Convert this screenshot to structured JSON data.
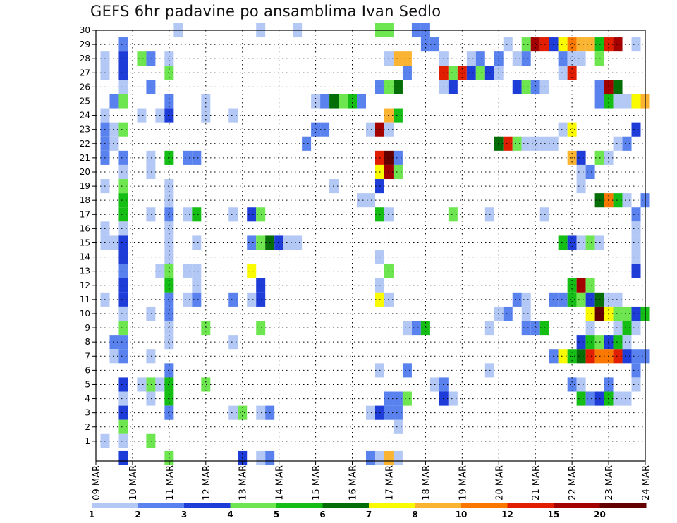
{
  "chart_data": {
    "type": "heatmap",
    "title": "GEFS 6hr padavine po ansamblima Ivan Sedlo",
    "xlabel": "",
    "ylabel": "",
    "ylim": [
      0,
      30
    ],
    "y_ticks": [
      1,
      2,
      3,
      4,
      5,
      6,
      7,
      8,
      9,
      10,
      11,
      12,
      13,
      14,
      15,
      16,
      17,
      18,
      19,
      20,
      21,
      22,
      23,
      24,
      25,
      26,
      27,
      28,
      29,
      30
    ],
    "x_ticks": [
      "09 MAR",
      "10 MAR",
      "11 MAR",
      "12 MAR",
      "13 MAR",
      "14 MAR",
      "15 MAR",
      "16 MAR",
      "17 MAR",
      "18 MAR",
      "19 MAR",
      "20 MAR",
      "21 MAR",
      "22 MAR",
      "23 MAR",
      "24 MAR"
    ],
    "time_steps": 60,
    "colorbar": {
      "levels": [
        "1",
        "2",
        "3",
        "4",
        "5",
        "6",
        "7",
        "8",
        "10",
        "12",
        "15",
        "20"
      ],
      "colors": [
        "#b4c8f5",
        "#5a82ee",
        "#1e3cd7",
        "#6ee650",
        "#14be14",
        "#066e06",
        "#fafa00",
        "#fab432",
        "#fa7800",
        "#e11e00",
        "#a50000",
        "#640000"
      ]
    },
    "cells": [
      [
        30,
        9,
        1
      ],
      [
        30,
        18,
        1
      ],
      [
        30,
        22,
        1
      ],
      [
        30,
        31,
        4
      ],
      [
        30,
        32,
        4
      ],
      [
        30,
        35,
        2
      ],
      [
        30,
        36,
        2
      ],
      [
        29,
        3,
        2
      ],
      [
        29,
        36,
        2
      ],
      [
        29,
        37,
        2
      ],
      [
        29,
        45,
        1
      ],
      [
        29,
        47,
        4
      ],
      [
        29,
        48,
        11
      ],
      [
        29,
        49,
        10
      ],
      [
        29,
        50,
        3
      ],
      [
        29,
        51,
        7
      ],
      [
        29,
        52,
        9
      ],
      [
        29,
        53,
        8
      ],
      [
        29,
        54,
        8
      ],
      [
        29,
        55,
        5
      ],
      [
        29,
        56,
        10
      ],
      [
        29,
        57,
        11
      ],
      [
        29,
        59,
        1
      ],
      [
        28,
        1,
        1
      ],
      [
        28,
        3,
        3
      ],
      [
        28,
        5,
        4
      ],
      [
        28,
        6,
        2
      ],
      [
        28,
        8,
        1
      ],
      [
        28,
        32,
        1
      ],
      [
        28,
        33,
        8
      ],
      [
        28,
        34,
        8
      ],
      [
        28,
        38,
        1
      ],
      [
        28,
        41,
        1
      ],
      [
        28,
        42,
        2
      ],
      [
        28,
        44,
        2
      ],
      [
        28,
        46,
        1
      ],
      [
        28,
        47,
        2
      ],
      [
        28,
        51,
        2
      ],
      [
        28,
        52,
        1
      ],
      [
        28,
        53,
        1
      ],
      [
        28,
        55,
        4
      ],
      [
        27,
        1,
        1
      ],
      [
        27,
        3,
        3
      ],
      [
        27,
        8,
        4
      ],
      [
        27,
        34,
        2
      ],
      [
        27,
        38,
        10
      ],
      [
        27,
        39,
        4
      ],
      [
        27,
        40,
        10
      ],
      [
        27,
        41,
        3
      ],
      [
        27,
        42,
        4
      ],
      [
        27,
        43,
        3
      ],
      [
        27,
        44,
        1
      ],
      [
        27,
        51,
        1
      ],
      [
        27,
        52,
        10
      ],
      [
        26,
        3,
        1
      ],
      [
        26,
        6,
        2
      ],
      [
        26,
        31,
        2
      ],
      [
        26,
        32,
        4
      ],
      [
        26,
        33,
        6
      ],
      [
        26,
        38,
        1
      ],
      [
        26,
        39,
        3
      ],
      [
        26,
        46,
        3
      ],
      [
        26,
        47,
        4
      ],
      [
        26,
        48,
        2
      ],
      [
        26,
        49,
        1
      ],
      [
        26,
        55,
        2
      ],
      [
        26,
        56,
        11
      ],
      [
        26,
        57,
        6
      ],
      [
        25,
        2,
        2
      ],
      [
        25,
        3,
        4
      ],
      [
        25,
        8,
        2
      ],
      [
        25,
        12,
        1
      ],
      [
        25,
        24,
        1
      ],
      [
        25,
        25,
        2
      ],
      [
        25,
        26,
        6
      ],
      [
        25,
        27,
        4
      ],
      [
        25,
        28,
        5
      ],
      [
        25,
        29,
        2
      ],
      [
        25,
        55,
        2
      ],
      [
        25,
        56,
        5
      ],
      [
        25,
        57,
        1
      ],
      [
        25,
        58,
        1
      ],
      [
        25,
        59,
        7
      ],
      [
        25,
        60,
        8
      ],
      [
        24,
        1,
        1
      ],
      [
        24,
        5,
        1
      ],
      [
        24,
        7,
        1
      ],
      [
        24,
        8,
        3
      ],
      [
        24,
        12,
        1
      ],
      [
        24,
        15,
        1
      ],
      [
        24,
        32,
        8
      ],
      [
        24,
        33,
        5
      ],
      [
        23,
        1,
        2
      ],
      [
        23,
        2,
        1
      ],
      [
        23,
        3,
        4
      ],
      [
        23,
        24,
        2
      ],
      [
        23,
        25,
        2
      ],
      [
        23,
        30,
        1
      ],
      [
        23,
        31,
        11
      ],
      [
        23,
        32,
        1
      ],
      [
        23,
        51,
        1
      ],
      [
        23,
        52,
        7
      ],
      [
        23,
        59,
        3
      ],
      [
        22,
        1,
        2
      ],
      [
        22,
        2,
        1
      ],
      [
        22,
        23,
        2
      ],
      [
        22,
        44,
        6
      ],
      [
        22,
        45,
        10
      ],
      [
        22,
        46,
        4
      ],
      [
        22,
        47,
        1
      ],
      [
        22,
        48,
        1
      ],
      [
        22,
        49,
        1
      ],
      [
        22,
        50,
        1
      ],
      [
        22,
        57,
        1
      ],
      [
        22,
        58,
        2
      ],
      [
        21,
        1,
        2
      ],
      [
        21,
        3,
        2
      ],
      [
        21,
        6,
        1
      ],
      [
        21,
        8,
        5
      ],
      [
        21,
        10,
        2
      ],
      [
        21,
        11,
        2
      ],
      [
        21,
        31,
        10
      ],
      [
        21,
        32,
        12
      ],
      [
        21,
        33,
        2
      ],
      [
        21,
        52,
        8
      ],
      [
        21,
        53,
        3
      ],
      [
        21,
        55,
        4
      ],
      [
        21,
        56,
        1
      ],
      [
        20,
        3,
        1
      ],
      [
        20,
        6,
        1
      ],
      [
        20,
        31,
        7
      ],
      [
        20,
        32,
        11
      ],
      [
        20,
        33,
        4
      ],
      [
        20,
        53,
        1
      ],
      [
        20,
        54,
        2
      ],
      [
        19,
        1,
        1
      ],
      [
        19,
        3,
        4
      ],
      [
        19,
        8,
        1
      ],
      [
        19,
        26,
        1
      ],
      [
        19,
        31,
        3
      ],
      [
        19,
        53,
        1
      ],
      [
        18,
        3,
        5
      ],
      [
        18,
        8,
        1
      ],
      [
        18,
        29,
        1
      ],
      [
        18,
        30,
        1
      ],
      [
        18,
        55,
        6
      ],
      [
        18,
        56,
        9
      ],
      [
        18,
        57,
        5
      ],
      [
        18,
        58,
        1
      ],
      [
        18,
        60,
        2
      ],
      [
        17,
        3,
        5
      ],
      [
        17,
        6,
        1
      ],
      [
        17,
        8,
        2
      ],
      [
        17,
        10,
        1
      ],
      [
        17,
        11,
        5
      ],
      [
        17,
        15,
        1
      ],
      [
        17,
        17,
        3
      ],
      [
        17,
        18,
        4
      ],
      [
        17,
        31,
        5
      ],
      [
        17,
        32,
        1
      ],
      [
        17,
        39,
        4
      ],
      [
        17,
        43,
        1
      ],
      [
        17,
        49,
        1
      ],
      [
        17,
        59,
        2
      ],
      [
        16,
        1,
        1
      ],
      [
        16,
        3,
        1
      ],
      [
        16,
        8,
        1
      ],
      [
        16,
        59,
        1
      ],
      [
        15,
        1,
        1
      ],
      [
        15,
        2,
        1
      ],
      [
        15,
        3,
        3
      ],
      [
        15,
        8,
        1
      ],
      [
        15,
        11,
        1
      ],
      [
        15,
        17,
        2
      ],
      [
        15,
        18,
        4
      ],
      [
        15,
        19,
        6
      ],
      [
        15,
        20,
        3
      ],
      [
        15,
        21,
        1
      ],
      [
        15,
        22,
        1
      ],
      [
        15,
        51,
        5
      ],
      [
        15,
        52,
        3
      ],
      [
        15,
        53,
        1
      ],
      [
        15,
        54,
        4
      ],
      [
        15,
        55,
        1
      ],
      [
        15,
        59,
        1
      ],
      [
        14,
        3,
        3
      ],
      [
        14,
        8,
        1
      ],
      [
        14,
        31,
        1
      ],
      [
        14,
        59,
        1
      ],
      [
        13,
        3,
        2
      ],
      [
        13,
        7,
        1
      ],
      [
        13,
        8,
        4
      ],
      [
        13,
        10,
        1
      ],
      [
        13,
        11,
        1
      ],
      [
        13,
        17,
        7
      ],
      [
        13,
        32,
        4
      ],
      [
        13,
        59,
        3
      ],
      [
        12,
        3,
        3
      ],
      [
        12,
        8,
        5
      ],
      [
        12,
        11,
        1
      ],
      [
        12,
        18,
        3
      ],
      [
        12,
        31,
        1
      ],
      [
        12,
        52,
        5
      ],
      [
        12,
        53,
        11
      ],
      [
        12,
        54,
        4
      ],
      [
        11,
        1,
        1
      ],
      [
        11,
        3,
        3
      ],
      [
        11,
        8,
        2
      ],
      [
        11,
        10,
        1
      ],
      [
        11,
        11,
        2
      ],
      [
        11,
        15,
        2
      ],
      [
        11,
        17,
        1
      ],
      [
        11,
        18,
        3
      ],
      [
        11,
        31,
        7
      ],
      [
        11,
        32,
        1
      ],
      [
        11,
        46,
        2
      ],
      [
        11,
        47,
        1
      ],
      [
        11,
        50,
        2
      ],
      [
        11,
        51,
        2
      ],
      [
        11,
        52,
        5
      ],
      [
        11,
        53,
        4
      ],
      [
        11,
        54,
        3
      ],
      [
        11,
        55,
        6
      ],
      [
        11,
        56,
        1
      ],
      [
        11,
        57,
        1
      ],
      [
        10,
        3,
        1
      ],
      [
        10,
        6,
        1
      ],
      [
        10,
        8,
        2
      ],
      [
        10,
        44,
        1
      ],
      [
        10,
        45,
        2
      ],
      [
        10,
        47,
        1
      ],
      [
        10,
        54,
        7
      ],
      [
        10,
        55,
        12
      ],
      [
        10,
        56,
        7
      ],
      [
        10,
        57,
        4
      ],
      [
        10,
        58,
        4
      ],
      [
        10,
        59,
        3
      ],
      [
        10,
        60,
        5
      ],
      [
        9,
        3,
        4
      ],
      [
        9,
        8,
        1
      ],
      [
        9,
        12,
        4
      ],
      [
        9,
        18,
        4
      ],
      [
        9,
        34,
        1
      ],
      [
        9,
        35,
        2
      ],
      [
        9,
        36,
        5
      ],
      [
        9,
        43,
        1
      ],
      [
        9,
        47,
        2
      ],
      [
        9,
        48,
        2
      ],
      [
        9,
        49,
        5
      ],
      [
        9,
        54,
        1
      ],
      [
        9,
        57,
        1
      ],
      [
        9,
        58,
        5
      ],
      [
        9,
        59,
        1
      ],
      [
        8,
        2,
        2
      ],
      [
        8,
        3,
        2
      ],
      [
        8,
        8,
        1
      ],
      [
        8,
        15,
        1
      ],
      [
        8,
        53,
        3
      ],
      [
        8,
        54,
        5
      ],
      [
        8,
        55,
        4
      ],
      [
        8,
        56,
        3
      ],
      [
        8,
        57,
        5
      ],
      [
        8,
        58,
        1
      ],
      [
        7,
        2,
        1
      ],
      [
        7,
        3,
        2
      ],
      [
        7,
        6,
        1
      ],
      [
        7,
        50,
        2
      ],
      [
        7,
        51,
        7
      ],
      [
        7,
        52,
        5
      ],
      [
        7,
        53,
        6
      ],
      [
        7,
        54,
        10
      ],
      [
        7,
        55,
        9
      ],
      [
        7,
        56,
        9
      ],
      [
        7,
        57,
        10
      ],
      [
        7,
        58,
        3
      ],
      [
        7,
        59,
        2
      ],
      [
        7,
        60,
        2
      ],
      [
        6,
        8,
        2
      ],
      [
        6,
        31,
        1
      ],
      [
        6,
        34,
        2
      ],
      [
        6,
        43,
        1
      ],
      [
        6,
        59,
        2
      ],
      [
        5,
        3,
        3
      ],
      [
        5,
        5,
        1
      ],
      [
        5,
        6,
        4
      ],
      [
        5,
        7,
        1
      ],
      [
        5,
        8,
        5
      ],
      [
        5,
        12,
        4
      ],
      [
        5,
        37,
        1
      ],
      [
        5,
        38,
        2
      ],
      [
        5,
        52,
        2
      ],
      [
        5,
        53,
        1
      ],
      [
        5,
        56,
        2
      ],
      [
        5,
        59,
        1
      ],
      [
        4,
        3,
        1
      ],
      [
        4,
        6,
        1
      ],
      [
        4,
        8,
        5
      ],
      [
        4,
        32,
        2
      ],
      [
        4,
        33,
        2
      ],
      [
        4,
        34,
        4
      ],
      [
        4,
        38,
        3
      ],
      [
        4,
        39,
        1
      ],
      [
        4,
        53,
        5
      ],
      [
        4,
        54,
        2
      ],
      [
        4,
        55,
        3
      ],
      [
        4,
        56,
        5
      ],
      [
        4,
        57,
        1
      ],
      [
        4,
        58,
        1
      ],
      [
        3,
        3,
        3
      ],
      [
        3,
        8,
        2
      ],
      [
        3,
        15,
        1
      ],
      [
        3,
        16,
        4
      ],
      [
        3,
        18,
        1
      ],
      [
        3,
        19,
        2
      ],
      [
        3,
        30,
        1
      ],
      [
        3,
        31,
        3
      ],
      [
        3,
        32,
        2
      ],
      [
        3,
        33,
        2
      ],
      [
        2,
        3,
        4
      ],
      [
        2,
        33,
        1
      ],
      [
        1,
        1,
        1
      ],
      [
        1,
        3,
        1
      ],
      [
        1,
        6,
        4
      ],
      [
        0,
        3,
        3
      ],
      [
        0,
        8,
        4
      ],
      [
        0,
        16,
        3
      ],
      [
        0,
        18,
        1
      ],
      [
        0,
        19,
        2
      ],
      [
        0,
        30,
        2
      ],
      [
        0,
        31,
        1
      ],
      [
        0,
        32,
        8
      ],
      [
        0,
        33,
        1
      ]
    ]
  }
}
